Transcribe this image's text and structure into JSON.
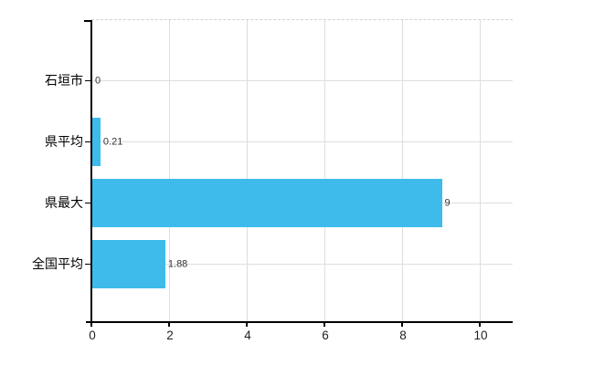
{
  "chart_data": {
    "type": "bar",
    "orientation": "horizontal",
    "title": "",
    "categories": [
      "石垣市",
      "県平均",
      "県最大",
      "全国平均"
    ],
    "values": [
      0,
      0.21,
      9,
      1.88
    ],
    "value_labels": [
      "0",
      "0.21",
      "9",
      "1.88"
    ],
    "xlabel": "",
    "ylabel": "",
    "xlim": [
      0,
      10
    ],
    "x_ticks": [
      0,
      2,
      4,
      6,
      8,
      10
    ],
    "x_tick_labels": [
      "0",
      "2",
      "4",
      "6",
      "8",
      "10"
    ],
    "grid": true,
    "legend_position": "none",
    "colors": {
      "bar": "#3ebbeb",
      "grid_line": "#dcdfdc",
      "top_border": "#d5d1d5",
      "axis": "#000000",
      "category_label": "#000000",
      "value_label": "#333333",
      "tick_label": "#222222",
      "background": "#ffffff"
    }
  }
}
